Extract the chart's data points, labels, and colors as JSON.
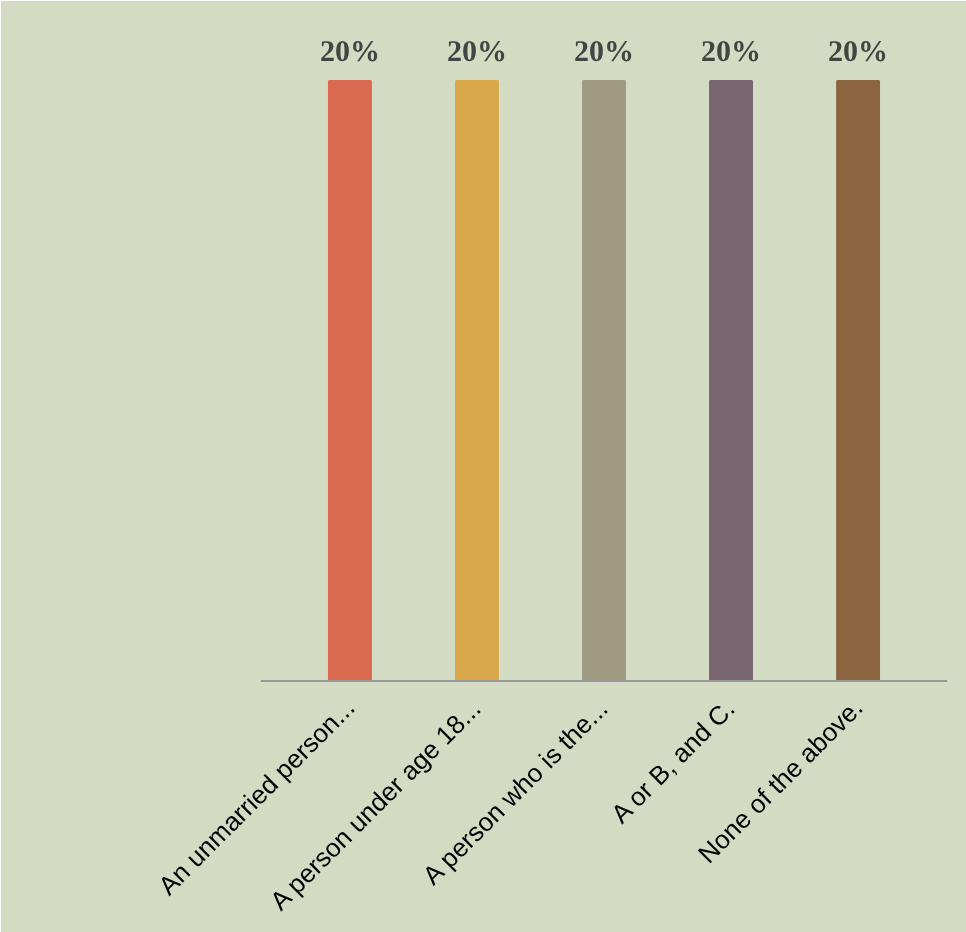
{
  "chart_data": {
    "type": "bar",
    "categories": [
      "An unmarried person...",
      "A person under age 18...",
      "A person who is the...",
      "A or B, and C.",
      "None of the above."
    ],
    "values": [
      20,
      20,
      20,
      20,
      20
    ],
    "colors": [
      "#d9694f",
      "#d9a84a",
      "#9e9a80",
      "#7a6670",
      "#8b6440"
    ],
    "value_labels": [
      "20%",
      "20%",
      "20%",
      "20%",
      "20%"
    ],
    "grid": false
  }
}
